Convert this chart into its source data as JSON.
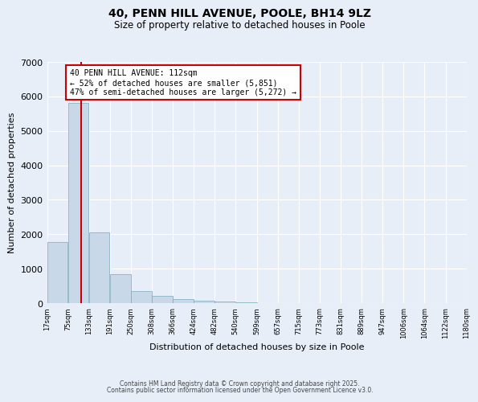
{
  "title": "40, PENN HILL AVENUE, POOLE, BH14 9LZ",
  "subtitle": "Size of property relative to detached houses in Poole",
  "xlabel": "Distribution of detached houses by size in Poole",
  "ylabel": "Number of detached properties",
  "bar_color": "#c8d8e8",
  "bar_edge_color": "#7aaabb",
  "background_color": "#e8eef8",
  "grid_color": "#ffffff",
  "vline_x": 112,
  "vline_color": "#cc0000",
  "bin_edges": [
    17,
    75,
    133,
    191,
    250,
    308,
    366,
    424,
    482,
    540,
    599,
    657,
    715,
    773,
    831,
    889,
    947,
    1006,
    1064,
    1122,
    1180
  ],
  "bin_labels": [
    "17sqm",
    "75sqm",
    "133sqm",
    "191sqm",
    "250sqm",
    "308sqm",
    "366sqm",
    "424sqm",
    "482sqm",
    "540sqm",
    "599sqm",
    "657sqm",
    "715sqm",
    "773sqm",
    "831sqm",
    "889sqm",
    "947sqm",
    "1006sqm",
    "1064sqm",
    "1122sqm",
    "1180sqm"
  ],
  "bar_heights": [
    1780,
    5820,
    2060,
    830,
    360,
    210,
    115,
    80,
    40,
    20,
    10,
    5,
    3,
    1,
    1,
    0,
    0,
    0,
    0,
    0
  ],
  "ylim": [
    0,
    7000
  ],
  "yticks": [
    0,
    1000,
    2000,
    3000,
    4000,
    5000,
    6000,
    7000
  ],
  "annotation_title": "40 PENN HILL AVENUE: 112sqm",
  "annotation_line1": "← 52% of detached houses are smaller (5,851)",
  "annotation_line2": "47% of semi-detached houses are larger (5,272) →",
  "annotation_box_color": "#ffffff",
  "annotation_border_color": "#cc0000",
  "footer_line1": "Contains HM Land Registry data © Crown copyright and database right 2025.",
  "footer_line2": "Contains public sector information licensed under the Open Government Licence v3.0."
}
